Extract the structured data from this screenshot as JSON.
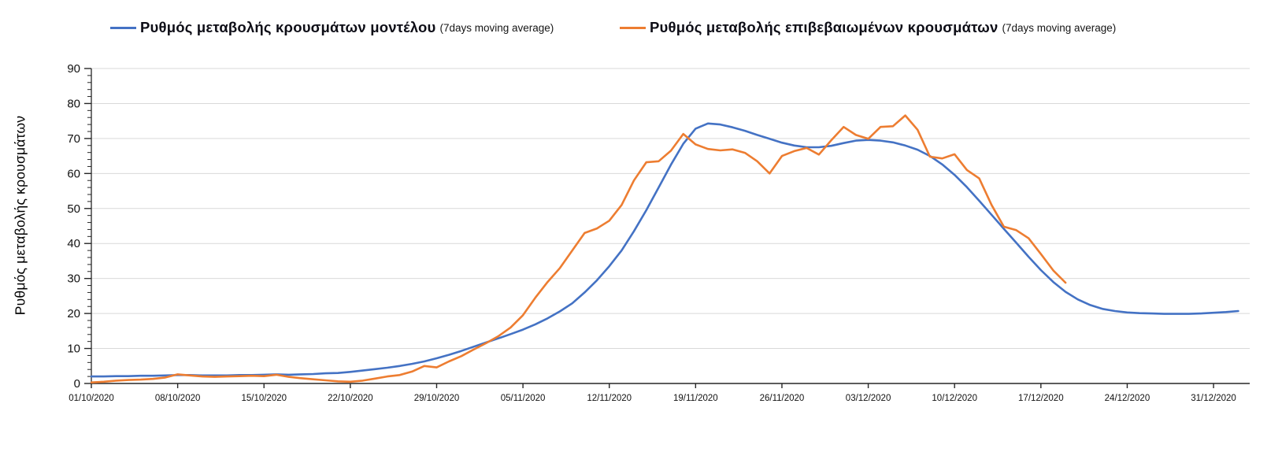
{
  "legend": {
    "items": [
      {
        "label": "Ρυθμός μεταβολής κρουσμάτων μοντέλου",
        "suffix": "(7days moving average)",
        "color": "#4472C4"
      },
      {
        "label": "Ρυθμός μεταβολής επιβεβαιωμένων κρουσμάτων",
        "suffix": "(7days moving average)",
        "color": "#ED7D31"
      }
    ]
  },
  "axes": {
    "y_title": "Ρυθμός μεταβολής κρουσμάτων"
  },
  "chart_data": {
    "type": "line",
    "title": "",
    "xlabel": "",
    "ylabel": "Ρυθμός μεταβολής κρουσμάτων",
    "ylim": [
      0,
      90
    ],
    "y_major_ticks": [
      0,
      10,
      20,
      30,
      40,
      50,
      60,
      70,
      80,
      90
    ],
    "y_minor_step": 2,
    "grid": "horizontal",
    "gridline_color": "#d9d9d9",
    "axis_color": "#262626",
    "legend_position": "top",
    "x_start_date": "01/10/2020",
    "x_cadence": "daily",
    "x_tick_interval_days": 7,
    "x_tick_labels": [
      "01/10/2020",
      "08/10/2020",
      "15/10/2020",
      "22/10/2020",
      "29/10/2020",
      "05/11/2020",
      "12/11/2020",
      "19/11/2020",
      "26/11/2020",
      "03/12/2020",
      "10/12/2020",
      "17/12/2020",
      "24/12/2020",
      "31/12/2020"
    ],
    "series": [
      {
        "name": "Ρυθμός μεταβολής κρουσμάτων μοντέλου (7days moving average)",
        "color": "#4472C4",
        "start_day": 0,
        "values": [
          2.0,
          2.0,
          2.1,
          2.1,
          2.2,
          2.2,
          2.3,
          2.4,
          2.4,
          2.3,
          2.3,
          2.3,
          2.4,
          2.4,
          2.5,
          2.6,
          2.5,
          2.6,
          2.7,
          2.9,
          3.0,
          3.3,
          3.7,
          4.1,
          4.5,
          5.0,
          5.6,
          6.3,
          7.2,
          8.2,
          9.3,
          10.5,
          11.7,
          12.9,
          14.1,
          15.4,
          16.9,
          18.6,
          20.6,
          22.9,
          26.0,
          29.5,
          33.5,
          38.0,
          43.5,
          49.5,
          56.0,
          62.5,
          68.5,
          72.8,
          74.3,
          74.0,
          73.2,
          72.2,
          71.0,
          69.9,
          68.8,
          68.0,
          67.5,
          67.5,
          67.9,
          68.7,
          69.4,
          69.6,
          69.4,
          68.9,
          68.0,
          66.8,
          65.0,
          62.6,
          59.6,
          56.1,
          52.2,
          48.2,
          44.2,
          40.2,
          36.2,
          32.4,
          29.0,
          26.2,
          24.0,
          22.4,
          21.3,
          20.7,
          20.3,
          20.1,
          20.0,
          19.9,
          19.9,
          19.9,
          20.0,
          20.2,
          20.4,
          20.7
        ]
      },
      {
        "name": "Ρυθμός μεταβολής επιβεβαιωμένων κρουσμάτων (7days moving average)",
        "color": "#ED7D31",
        "start_day": 0,
        "values": [
          0.3,
          0.5,
          0.8,
          1.0,
          1.1,
          1.3,
          1.7,
          2.6,
          2.3,
          2.0,
          1.9,
          2.0,
          2.1,
          2.2,
          2.1,
          2.5,
          1.9,
          1.5,
          1.2,
          0.9,
          0.6,
          0.5,
          0.8,
          1.4,
          2.0,
          2.4,
          3.4,
          5.0,
          4.6,
          6.3,
          7.8,
          9.7,
          11.5,
          13.5,
          16.0,
          19.5,
          24.5,
          29.0,
          33.0,
          38.0,
          43.0,
          44.3,
          46.5,
          51.0,
          58.0,
          63.2,
          63.5,
          66.5,
          71.3,
          68.3,
          67.0,
          66.6,
          66.9,
          65.9,
          63.5,
          60.0,
          65.0,
          66.4,
          67.3,
          65.4,
          69.5,
          73.3,
          71.0,
          69.9,
          73.3,
          73.5,
          76.6,
          72.5,
          64.8,
          64.3,
          65.5,
          61.0,
          58.6,
          51.0,
          44.8,
          43.8,
          41.5,
          37.0,
          32.3,
          28.8
        ]
      }
    ]
  }
}
